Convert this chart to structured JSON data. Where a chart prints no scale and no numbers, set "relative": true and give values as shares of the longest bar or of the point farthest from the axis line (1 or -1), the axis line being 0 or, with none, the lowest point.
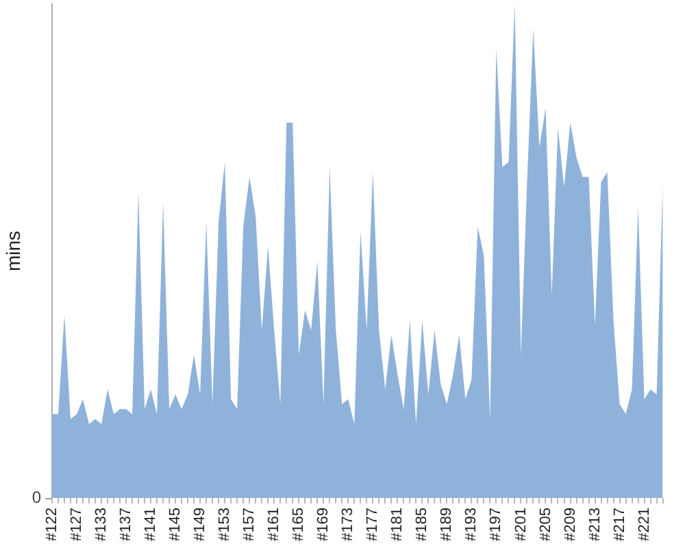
{
  "chart_data": {
    "type": "area",
    "ylabel": "mins",
    "relative": true,
    "grid": false,
    "legend": false,
    "color": "#8fb2db",
    "annotations": [
      "0"
    ],
    "categories": [
      "#122",
      null,
      null,
      null,
      "#127",
      null,
      null,
      null,
      "#133",
      null,
      null,
      null,
      "#137",
      null,
      null,
      null,
      "#141",
      null,
      null,
      null,
      "#145",
      null,
      null,
      null,
      "#149",
      null,
      null,
      null,
      "#153",
      null,
      null,
      null,
      "#157",
      null,
      null,
      null,
      "#161",
      null,
      null,
      null,
      "#165",
      null,
      null,
      null,
      "#169",
      null,
      null,
      null,
      "#173",
      null,
      null,
      null,
      "#177",
      null,
      null,
      null,
      "#181",
      null,
      null,
      null,
      "#185",
      null,
      null,
      null,
      "#189",
      null,
      null,
      null,
      "#193",
      null,
      null,
      null,
      "#197",
      null,
      null,
      null,
      "#201",
      null,
      null,
      null,
      "#205",
      null,
      null,
      null,
      "#209",
      null,
      null,
      null,
      "#213",
      null,
      null,
      null,
      "#217",
      null,
      null,
      null,
      "#221",
      null,
      null,
      null
    ],
    "values": [
      0.17,
      0.17,
      0.37,
      0.16,
      0.17,
      0.2,
      0.15,
      0.16,
      0.15,
      0.22,
      0.17,
      0.18,
      0.18,
      0.17,
      0.62,
      0.18,
      0.22,
      0.17,
      0.6,
      0.18,
      0.21,
      0.18,
      0.21,
      0.29,
      0.21,
      0.56,
      0.19,
      0.56,
      0.68,
      0.2,
      0.18,
      0.55,
      0.65,
      0.57,
      0.34,
      0.51,
      0.34,
      0.19,
      0.76,
      0.76,
      0.29,
      0.38,
      0.34,
      0.48,
      0.19,
      0.67,
      0.34,
      0.19,
      0.2,
      0.15,
      0.54,
      0.34,
      0.66,
      0.34,
      0.22,
      0.33,
      0.25,
      0.18,
      0.36,
      0.15,
      0.36,
      0.21,
      0.34,
      0.23,
      0.19,
      0.25,
      0.33,
      0.2,
      0.24,
      0.55,
      0.49,
      0.16,
      0.91,
      0.67,
      0.68,
      1,
      0.29,
      0.64,
      0.95,
      0.71,
      0.79,
      0.41,
      0.75,
      0.63,
      0.76,
      0.69,
      0.65,
      0.65,
      0.35,
      0.64,
      0.66,
      0.36,
      0.19,
      0.17,
      0.22,
      0.59,
      0.2,
      0.22,
      0.21,
      0.64
    ]
  }
}
